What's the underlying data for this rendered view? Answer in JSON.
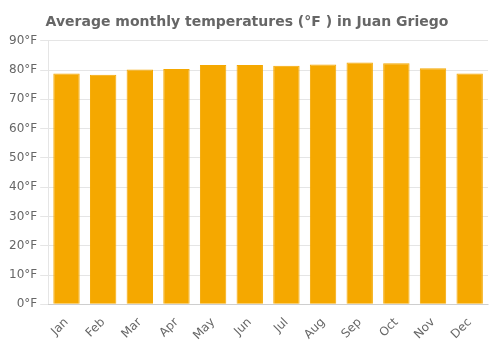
{
  "chart_data": {
    "type": "bar",
    "title": "Average monthly temperatures (°F ) in Juan Griego",
    "categories": [
      "Jan",
      "Feb",
      "Mar",
      "Apr",
      "May",
      "Jun",
      "Jul",
      "Aug",
      "Sep",
      "Oct",
      "Nov",
      "Dec"
    ],
    "values": [
      78.8,
      78.4,
      80.2,
      80.4,
      81.7,
      81.7,
      81.5,
      81.9,
      82.6,
      82.3,
      80.6,
      78.8
    ],
    "color": "#F5A800",
    "ylim": [
      0,
      90
    ],
    "yticks": [
      {
        "value": 0,
        "label": "0°F"
      },
      {
        "value": 10,
        "label": "10°F"
      },
      {
        "value": 20,
        "label": "20°F"
      },
      {
        "value": 30,
        "label": "30°F"
      },
      {
        "value": 40,
        "label": "40°F"
      },
      {
        "value": 50,
        "label": "50°F"
      },
      {
        "value": 60,
        "label": "60°F"
      },
      {
        "value": 70,
        "label": "70°F"
      },
      {
        "value": 80,
        "label": "80°F"
      },
      {
        "value": 90,
        "label": "90°F"
      }
    ],
    "grid": true
  }
}
